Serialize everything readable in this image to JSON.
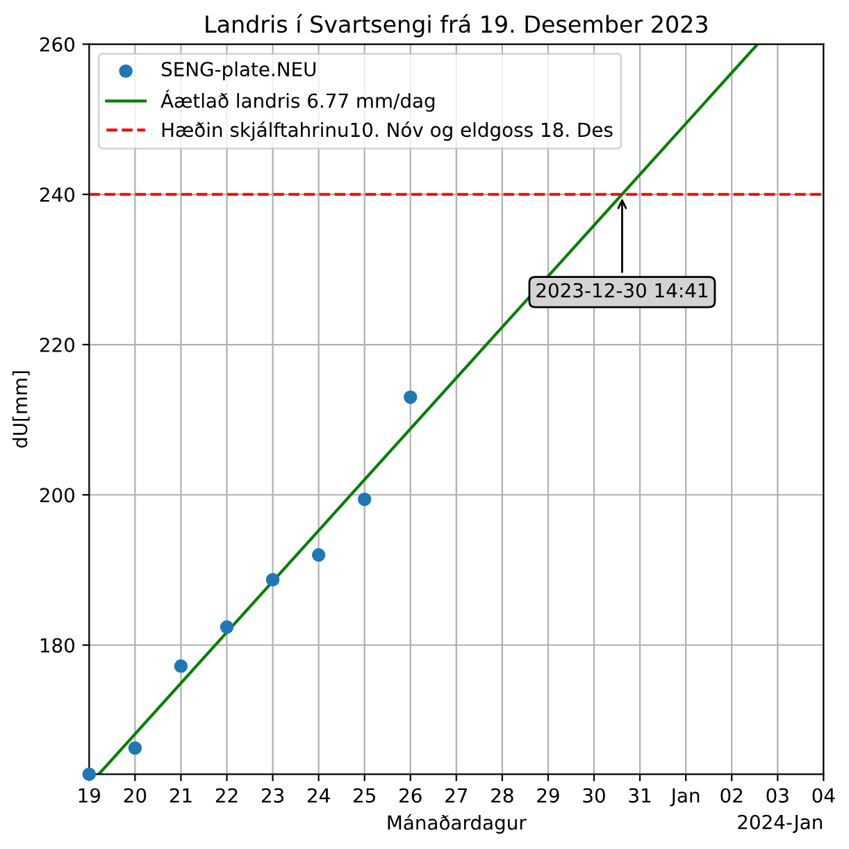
{
  "chart_data": {
    "type": "scatter",
    "title": "Landris í Svartsengi frá 19. Desember 2023",
    "xlabel": "Mánaðardagur",
    "ylabel": "dU[mm]",
    "series": [
      {
        "name": "SENG-plate.NEU",
        "color": "#1f77b4",
        "marker": "circle",
        "x": [
          "2023-12-19",
          "2023-12-20",
          "2023-12-21",
          "2023-12-22",
          "2023-12-23",
          "2023-12-24",
          "2023-12-25",
          "2023-12-26"
        ],
        "values": [
          162.8,
          166.3,
          177.2,
          182.4,
          188.7,
          192.0,
          199.4,
          213.0
        ]
      },
      {
        "name": "Áætlað landris 6.77 mm/dag",
        "type": "line",
        "color": "#008000",
        "line_style": "solid",
        "x": [
          "2023-12-19T05:00",
          "2024-01-02T13:30"
        ],
        "values": [
          162.8,
          260
        ]
      }
    ],
    "ref_lines": [
      {
        "axis": "y",
        "value": 240,
        "label": "Hæðin skjálftahrinu10. Nóv og eldgoss 18. Des",
        "color": "#ff0000",
        "line_style": "dashed"
      }
    ],
    "annotations": [
      {
        "text": "2023-12-30 14:41",
        "x": "2023-12-30T14:41",
        "y": 240
      },
      "2024-Jan"
    ],
    "xlim": [
      "2023-12-19",
      "2024-01-04"
    ],
    "xticks": [
      {
        "value": "2023-12-19",
        "label": "19"
      },
      {
        "value": "2023-12-20",
        "label": "20"
      },
      {
        "value": "2023-12-21",
        "label": "21"
      },
      {
        "value": "2023-12-22",
        "label": "22"
      },
      {
        "value": "2023-12-23",
        "label": "23"
      },
      {
        "value": "2023-12-24",
        "label": "24"
      },
      {
        "value": "2023-12-25",
        "label": "25"
      },
      {
        "value": "2023-12-26",
        "label": "26"
      },
      {
        "value": "2023-12-27",
        "label": "27"
      },
      {
        "value": "2023-12-28",
        "label": "28"
      },
      {
        "value": "2023-12-29",
        "label": "29"
      },
      {
        "value": "2023-12-30",
        "label": "30"
      },
      {
        "value": "2023-12-31",
        "label": "31"
      },
      {
        "value": "2024-01-01",
        "label": "Jan"
      },
      {
        "value": "2024-01-02",
        "label": "02"
      },
      {
        "value": "2024-01-03",
        "label": "03"
      },
      {
        "value": "2024-01-04",
        "label": "04"
      }
    ],
    "ylim": [
      162.8,
      260
    ],
    "yticks": [
      180,
      200,
      220,
      240,
      260
    ],
    "grid": true,
    "legend": "top left"
  }
}
